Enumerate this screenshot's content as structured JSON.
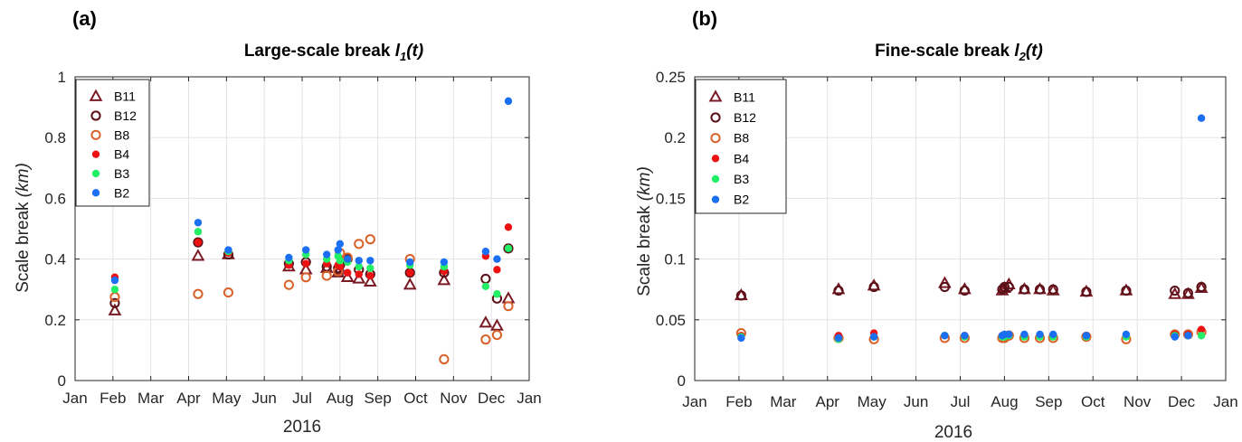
{
  "colors": {
    "B11": "#7a1a24",
    "B12": "#5a1018",
    "B8": "#d9622b",
    "B4": "#ee1111",
    "B3": "#22ee66",
    "B2": "#1a6ff2"
  },
  "chart_data": [
    {
      "panel_label": "(a)",
      "type": "scatter",
      "title_main": "Large-scale break ",
      "title_var": "l",
      "title_sub": "1",
      "title_tail": "(t)",
      "ylabel_main": "Scale break ",
      "ylabel_unit": "(km)",
      "xlabel": "2016",
      "ylim": [
        0,
        1
      ],
      "yticks": [
        0,
        0.2,
        0.4,
        0.6,
        0.8,
        1
      ],
      "ytick_labels": [
        "0",
        "0.2",
        "0.4",
        "0.6",
        "0.8",
        "1"
      ],
      "xlim": [
        0,
        12
      ],
      "xticks": [
        0,
        1,
        2,
        3,
        4,
        5,
        6,
        7,
        8,
        9,
        10,
        11,
        12
      ],
      "xtick_labels": [
        "Jan",
        "Feb",
        "Mar",
        "Apr",
        "May",
        "Jun",
        "Jul",
        "Aug",
        "Sep",
        "Oct",
        "Nov",
        "Dec",
        "Jan"
      ],
      "grid": true,
      "legend_position": "top-left",
      "series": [
        {
          "name": "B11",
          "marker": "triangle-open",
          "color": "#7a1a24",
          "x": [
            1.05,
            3.25,
            4.05,
            5.65,
            6.1,
            6.65,
            6.95,
            7.0,
            7.2,
            7.5,
            7.8,
            8.85,
            9.75,
            10.85,
            11.15,
            11.45
          ],
          "y": [
            0.23,
            0.41,
            0.415,
            0.375,
            0.365,
            0.37,
            0.355,
            0.365,
            0.34,
            0.335,
            0.325,
            0.315,
            0.33,
            0.19,
            0.18,
            0.27
          ]
        },
        {
          "name": "B12",
          "marker": "circle-open",
          "color": "#5a1018",
          "x": [
            1.05,
            3.25,
            4.05,
            5.65,
            6.1,
            6.65,
            6.95,
            7.0,
            7.2,
            7.5,
            7.8,
            8.85,
            9.75,
            10.85,
            11.15,
            11.45
          ],
          "y": [
            0.255,
            0.455,
            0.415,
            0.385,
            0.39,
            0.375,
            0.37,
            0.38,
            0.4,
            0.365,
            0.35,
            0.355,
            0.355,
            0.335,
            0.27,
            0.435
          ]
        },
        {
          "name": "B8",
          "marker": "circle-open",
          "color": "#d9622b",
          "x": [
            1.05,
            3.25,
            4.05,
            5.65,
            6.1,
            6.65,
            6.95,
            7.0,
            7.2,
            7.5,
            7.8,
            8.85,
            9.75,
            10.85,
            11.15,
            11.45
          ],
          "y": [
            0.275,
            0.285,
            0.29,
            0.315,
            0.34,
            0.345,
            0.36,
            0.42,
            0.405,
            0.45,
            0.465,
            0.4,
            0.07,
            0.135,
            0.15,
            0.245
          ]
        },
        {
          "name": "B4",
          "marker": "circle-filled",
          "color": "#ee1111",
          "x": [
            1.05,
            3.25,
            4.05,
            5.65,
            6.1,
            6.65,
            6.95,
            7.0,
            7.2,
            7.5,
            7.8,
            8.85,
            9.75,
            10.85,
            11.15,
            11.45
          ],
          "y": [
            0.34,
            0.455,
            0.42,
            0.38,
            0.385,
            0.385,
            0.38,
            0.375,
            0.355,
            0.35,
            0.345,
            0.355,
            0.36,
            0.41,
            0.365,
            0.505
          ]
        },
        {
          "name": "B3",
          "marker": "circle-filled",
          "color": "#22ee66",
          "x": [
            1.05,
            3.25,
            4.05,
            5.65,
            6.1,
            6.65,
            6.95,
            7.0,
            7.2,
            7.5,
            7.8,
            8.85,
            9.75,
            10.85,
            11.15,
            11.45
          ],
          "y": [
            0.3,
            0.49,
            0.425,
            0.395,
            0.415,
            0.4,
            0.41,
            0.395,
            0.39,
            0.375,
            0.37,
            0.38,
            0.375,
            0.31,
            0.285,
            0.435
          ]
        },
        {
          "name": "B2",
          "marker": "circle-filled",
          "color": "#1a6ff2",
          "x": [
            1.05,
            3.25,
            4.05,
            5.65,
            6.1,
            6.65,
            6.95,
            7.0,
            7.2,
            7.5,
            7.8,
            8.85,
            9.75,
            10.85,
            11.15,
            11.45
          ],
          "y": [
            0.33,
            0.52,
            0.43,
            0.405,
            0.43,
            0.415,
            0.43,
            0.45,
            0.4,
            0.395,
            0.395,
            0.39,
            0.39,
            0.425,
            0.4,
            0.92
          ]
        }
      ]
    },
    {
      "panel_label": "(b)",
      "type": "scatter",
      "title_main": "Fine-scale break ",
      "title_var": "l",
      "title_sub": "2",
      "title_tail": "(t)",
      "ylabel_main": "Scale break ",
      "ylabel_unit": "(km)",
      "xlabel": "2016",
      "ylim": [
        0,
        0.25
      ],
      "yticks": [
        0,
        0.05,
        0.1,
        0.15,
        0.2,
        0.25
      ],
      "ytick_labels": [
        "0",
        "0.05",
        "0.1",
        "0.15",
        "0.2",
        "0.25"
      ],
      "xlim": [
        0,
        12
      ],
      "xticks": [
        0,
        1,
        2,
        3,
        4,
        5,
        6,
        7,
        8,
        9,
        10,
        11,
        12
      ],
      "xtick_labels": [
        "Jan",
        "Feb",
        "Mar",
        "Apr",
        "May",
        "Jun",
        "Jul",
        "Aug",
        "Sep",
        "Oct",
        "Nov",
        "Dec",
        "Jan"
      ],
      "grid": true,
      "legend_position": "top-left",
      "series": [
        {
          "name": "B11",
          "marker": "triangle-open",
          "color": "#7a1a24",
          "x": [
            1.05,
            3.25,
            4.05,
            5.65,
            6.1,
            6.95,
            7.0,
            7.1,
            7.45,
            7.8,
            8.1,
            8.85,
            9.75,
            10.85,
            11.15,
            11.45
          ],
          "y": [
            0.07,
            0.075,
            0.078,
            0.08,
            0.075,
            0.074,
            0.076,
            0.079,
            0.075,
            0.075,
            0.074,
            0.073,
            0.074,
            0.071,
            0.071,
            0.076
          ]
        },
        {
          "name": "B12",
          "marker": "circle-open",
          "color": "#5a1018",
          "x": [
            1.05,
            3.25,
            4.05,
            5.65,
            6.1,
            6.95,
            7.0,
            7.1,
            7.45,
            7.8,
            8.1,
            8.85,
            9.75,
            10.85,
            11.15,
            11.45
          ],
          "y": [
            0.07,
            0.074,
            0.077,
            0.077,
            0.074,
            0.075,
            0.077,
            0.077,
            0.075,
            0.075,
            0.075,
            0.073,
            0.074,
            0.074,
            0.072,
            0.077
          ]
        },
        {
          "name": "B8",
          "marker": "circle-open",
          "color": "#d9622b",
          "x": [
            1.05,
            3.25,
            4.05,
            5.65,
            6.1,
            6.95,
            7.0,
            7.1,
            7.45,
            7.8,
            8.1,
            8.85,
            9.75,
            10.85,
            11.15,
            11.45
          ],
          "y": [
            0.039,
            0.035,
            0.034,
            0.035,
            0.035,
            0.035,
            0.035,
            0.037,
            0.035,
            0.035,
            0.035,
            0.036,
            0.034,
            0.038,
            0.038,
            0.04
          ]
        },
        {
          "name": "B4",
          "marker": "circle-filled",
          "color": "#ee1111",
          "x": [
            1.05,
            3.25,
            4.05,
            5.65,
            6.1,
            6.95,
            7.0,
            7.1,
            7.45,
            7.8,
            8.1,
            8.85,
            9.75,
            10.85,
            11.15,
            11.45
          ],
          "y": [
            0.037,
            0.037,
            0.039,
            0.037,
            0.037,
            0.037,
            0.037,
            0.038,
            0.037,
            0.037,
            0.037,
            0.037,
            0.037,
            0.038,
            0.038,
            0.042
          ]
        },
        {
          "name": "B3",
          "marker": "circle-filled",
          "color": "#22ee66",
          "x": [
            1.05,
            3.25,
            4.05,
            5.65,
            6.1,
            6.95,
            7.0,
            7.1,
            7.45,
            7.8,
            8.1,
            8.85,
            9.75,
            10.85,
            11.15,
            11.45
          ],
          "y": [
            0.036,
            0.034,
            0.036,
            0.037,
            0.036,
            0.036,
            0.036,
            0.037,
            0.036,
            0.036,
            0.036,
            0.036,
            0.036,
            0.037,
            0.037,
            0.037
          ]
        },
        {
          "name": "B2",
          "marker": "circle-filled",
          "color": "#1a6ff2",
          "x": [
            1.05,
            3.25,
            4.05,
            5.65,
            6.1,
            6.95,
            7.0,
            7.1,
            7.45,
            7.8,
            8.1,
            8.85,
            9.75,
            10.85,
            11.15,
            11.45
          ],
          "y": [
            0.035,
            0.035,
            0.036,
            0.037,
            0.037,
            0.037,
            0.038,
            0.038,
            0.038,
            0.038,
            0.038,
            0.037,
            0.038,
            0.036,
            0.037,
            0.216
          ]
        }
      ]
    }
  ]
}
